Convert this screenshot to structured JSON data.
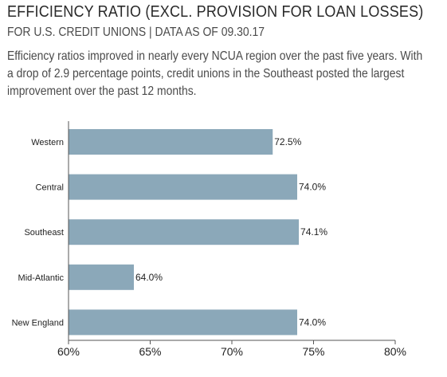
{
  "header": {
    "title": "EFFICIENCY RATIO (EXCL. PROVISION FOR LOAN LOSSES)",
    "subtitle": "FOR U.S. CREDIT UNIONS | DATA AS OF 09.30.17",
    "description": "Efficiency ratios improved in nearly every NCUA region over the past five years. With a drop of 2.9 percentage points, credit unions in the Southeast posted the largest improvement over the past 12 months."
  },
  "colors": {
    "bar": "#8ba8b9",
    "axis": "#555555",
    "text": "#222222"
  },
  "chart_data": {
    "type": "bar",
    "orientation": "horizontal",
    "categories": [
      "Western",
      "Central",
      "Southeast",
      "Mid-Atlantic",
      "New England"
    ],
    "values": [
      72.5,
      74.0,
      74.1,
      64.0,
      74.0
    ],
    "data_labels": [
      "72.5%",
      "74.0%",
      "74.1%",
      "64.0%",
      "74.0%"
    ],
    "xlim": [
      60,
      80
    ],
    "x_ticks": [
      60,
      65,
      70,
      75,
      80
    ],
    "x_tick_labels": [
      "60%",
      "65%",
      "70%",
      "75%",
      "80%"
    ],
    "grid": false,
    "legend": "none"
  }
}
